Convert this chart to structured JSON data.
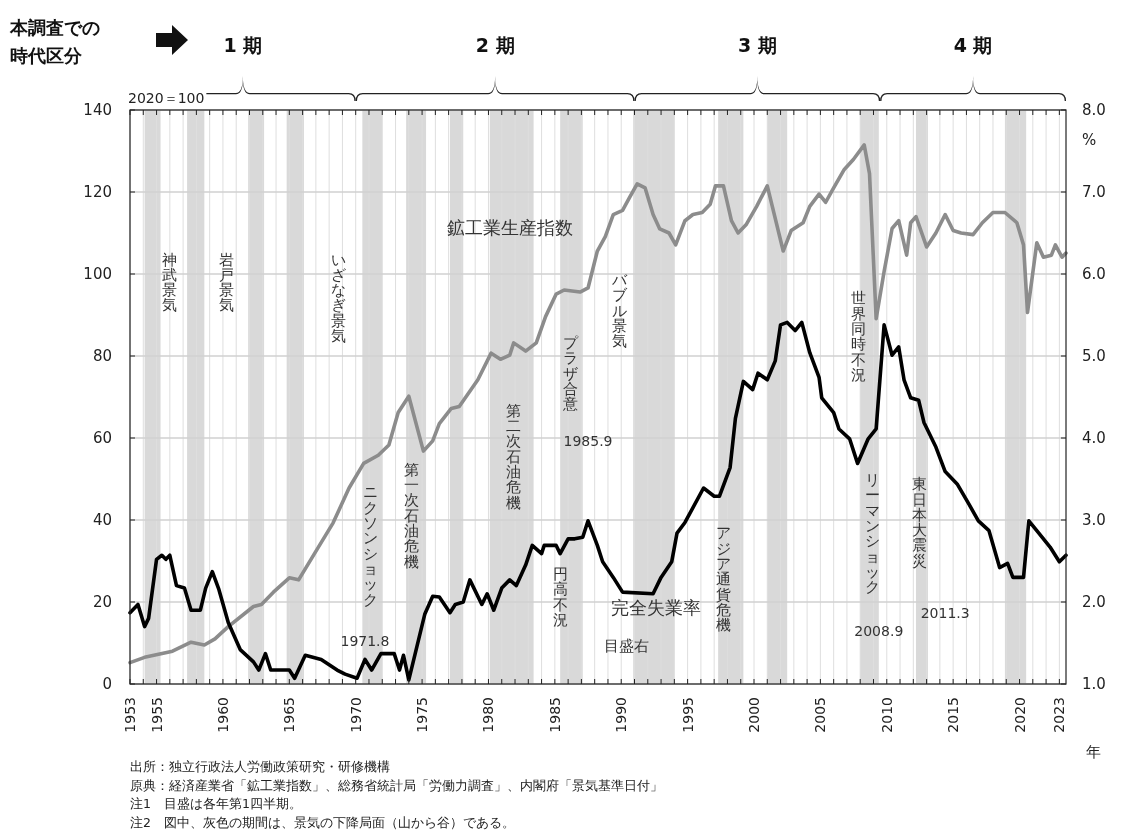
{
  "chart_data": {
    "type": "line",
    "xlabel": "年",
    "ylabel": "2020＝100",
    "y2label": "%",
    "xlim": [
      1953,
      2023.5
    ],
    "xticks": [
      1953,
      {
        "value": 1954,
        "label": null
      },
      1955,
      {
        "value": 1956,
        "label": null
      },
      {
        "value": 1957,
        "label": null
      },
      {
        "value": 1958,
        "label": null
      },
      {
        "value": 1959,
        "label": null
      },
      1960,
      {
        "value": 1961,
        "label": null
      },
      {
        "value": 1962,
        "label": null
      },
      {
        "value": 1963,
        "label": null
      },
      {
        "value": 1964,
        "label": null
      },
      1965,
      {
        "value": 1966,
        "label": null
      },
      {
        "value": 1967,
        "label": null
      },
      {
        "value": 1968,
        "label": null
      },
      {
        "value": 1969,
        "label": null
      },
      1970,
      {
        "value": 1971,
        "label": null
      },
      {
        "value": 1972,
        "label": null
      },
      {
        "value": 1973,
        "label": null
      },
      {
        "value": 1974,
        "label": null
      },
      1975,
      {
        "value": 1976,
        "label": null
      },
      {
        "value": 1977,
        "label": null
      },
      {
        "value": 1978,
        "label": null
      },
      {
        "value": 1979,
        "label": null
      },
      1980,
      {
        "value": 1981,
        "label": null
      },
      {
        "value": 1982,
        "label": null
      },
      {
        "value": 1983,
        "label": null
      },
      {
        "value": 1984,
        "label": null
      },
      1985,
      {
        "value": 1986,
        "label": null
      },
      {
        "value": 1987,
        "label": null
      },
      {
        "value": 1988,
        "label": null
      },
      {
        "value": 1989,
        "label": null
      },
      1990,
      {
        "value": 1991,
        "label": null
      },
      {
        "value": 1992,
        "label": null
      },
      {
        "value": 1993,
        "label": null
      },
      {
        "value": 1994,
        "label": null
      },
      1995,
      {
        "value": 1996,
        "label": null
      },
      {
        "value": 1997,
        "label": null
      },
      {
        "value": 1998,
        "label": null
      },
      {
        "value": 1999,
        "label": null
      },
      2000,
      {
        "value": 2001,
        "label": null
      },
      {
        "value": 2002,
        "label": null
      },
      {
        "value": 2003,
        "label": null
      },
      {
        "value": 2004,
        "label": null
      },
      2005,
      {
        "value": 2006,
        "label": null
      },
      {
        "value": 2007,
        "label": null
      },
      {
        "value": 2008,
        "label": null
      },
      {
        "value": 2009,
        "label": null
      },
      2010,
      {
        "value": 2011,
        "label": null
      },
      {
        "value": 2012,
        "label": null
      },
      {
        "value": 2013,
        "label": null
      },
      {
        "value": 2014,
        "label": null
      },
      2015,
      {
        "value": 2016,
        "label": null
      },
      {
        "value": 2017,
        "label": null
      },
      {
        "value": 2018,
        "label": null
      },
      {
        "value": 2019,
        "label": null
      },
      2020,
      {
        "value": 2021,
        "label": null
      },
      {
        "value": 2022,
        "label": null
      },
      2023
    ],
    "ylim": [
      0,
      140
    ],
    "yticks": [
      0,
      20,
      40,
      60,
      80,
      100,
      120,
      140
    ],
    "y2lim": [
      1,
      8
    ],
    "y2ticks": [
      {
        "value": 1,
        "label": "1.0"
      },
      {
        "value": 2,
        "label": "2.0"
      },
      {
        "value": 3,
        "label": "3.0"
      },
      {
        "value": 4,
        "label": "4.0"
      },
      {
        "value": 5,
        "label": "5.0"
      },
      {
        "value": 6,
        "label": "6.0"
      },
      {
        "value": 7,
        "label": "7.0"
      },
      {
        "value": 8,
        "label": "8.0"
      }
    ],
    "grid": true,
    "series": [
      {
        "name": "鉱工業生産指数",
        "color": "#8c8c8c",
        "x": [
          1953.0,
          1954.1,
          1956.2,
          1957.6,
          1958.6,
          1959.4,
          1960.4,
          1962.3,
          1962.9,
          1963.8,
          1965.0,
          1965.7,
          1967.1,
          1968.3,
          1969.5,
          1970.6,
          1971.7,
          1972.5,
          1973.2,
          1974.0,
          1975.1,
          1975.8,
          1976.3,
          1977.2,
          1977.8,
          1979.2,
          1980.2,
          1980.9,
          1981.6,
          1981.9,
          1982.8,
          1983.6,
          1984.3,
          1985.1,
          1985.7,
          1986.9,
          1987.5,
          1988.2,
          1988.8,
          1989.4,
          1990.1,
          1990.6,
          1991.2,
          1991.8,
          1992.4,
          1992.9,
          1993.6,
          1994.1,
          1994.8,
          1995.4,
          1996.1,
          1996.7,
          1997.1,
          1997.7,
          1998.3,
          1998.8,
          1999.4,
          2000.2,
          2001.0,
          2002.2,
          2002.8,
          2003.7,
          2004.2,
          2004.9,
          2005.4,
          2006.0,
          2006.8,
          2007.5,
          2008.3,
          2008.7,
          2009.2,
          2009.8,
          2010.4,
          2010.9,
          2011.5,
          2011.8,
          2012.2,
          2013.0,
          2013.7,
          2014.4,
          2015.0,
          2015.6,
          2016.5,
          2017.2,
          2018.0,
          2018.9,
          2019.8,
          2020.3,
          2020.6,
          2021.3,
          2021.8,
          2022.4,
          2022.7,
          2023.2,
          2023.5
        ],
        "values": [
          5.2,
          6.5,
          8.0,
          10.2,
          9.5,
          11.0,
          14.0,
          18.9,
          19.4,
          22.4,
          25.9,
          25.4,
          32.9,
          39.3,
          47.8,
          53.8,
          55.8,
          58.3,
          66.2,
          70.2,
          56.8,
          59.3,
          63.5,
          67.2,
          67.7,
          74.2,
          80.7,
          79.2,
          80.2,
          83.2,
          81.2,
          83.2,
          89.6,
          95.1,
          96.1,
          95.6,
          96.6,
          105.6,
          109.1,
          114.5,
          115.5,
          118.5,
          122.0,
          121.0,
          114.5,
          111.0,
          110.0,
          107.1,
          113.0,
          114.5,
          115.0,
          117.0,
          121.5,
          121.5,
          113.0,
          110.0,
          112.0,
          116.5,
          121.5,
          105.6,
          110.6,
          112.5,
          116.5,
          119.5,
          117.5,
          121.0,
          125.5,
          128.0,
          131.5,
          124.5,
          89.1,
          100.6,
          111.1,
          113.0,
          104.6,
          112.5,
          114.0,
          106.6,
          110.0,
          114.5,
          110.6,
          110.0,
          109.6,
          112.5,
          115.0,
          115.0,
          112.5,
          107.1,
          90.6,
          107.6,
          104.1,
          104.6,
          107.1,
          104.1,
          105.1
        ]
      },
      {
        "name": "完全失業率",
        "color": "#000000",
        "axis": "y2",
        "x": [
          1953.0,
          1953.6,
          1954.1,
          1954.4,
          1955.0,
          1955.4,
          1955.7,
          1956.0,
          1956.5,
          1957.1,
          1957.6,
          1958.3,
          1958.7,
          1959.2,
          1959.7,
          1960.4,
          1961.3,
          1962.3,
          1962.7,
          1963.2,
          1963.6,
          1965.0,
          1965.4,
          1966.2,
          1967.4,
          1968.6,
          1969.2,
          1970.1,
          1970.7,
          1971.2,
          1971.9,
          1972.9,
          1973.3,
          1973.6,
          1974.0,
          1974.6,
          1975.2,
          1975.8,
          1976.3,
          1977.1,
          1977.5,
          1978.1,
          1978.6,
          1979.5,
          1979.9,
          1980.4,
          1981.0,
          1981.6,
          1982.1,
          1982.8,
          1983.3,
          1984.0,
          1984.2,
          1985.1,
          1985.4,
          1986.0,
          1986.5,
          1987.1,
          1987.5,
          1988.2,
          1988.6,
          1989.4,
          1990.1,
          1992.4,
          1993.0,
          1993.8,
          1994.2,
          1994.8,
          1996.2,
          1997.0,
          1997.4,
          1998.2,
          1998.6,
          1999.2,
          1999.9,
          2000.3,
          2001.0,
          2001.6,
          2002.0,
          2002.5,
          2003.1,
          2003.6,
          2004.2,
          2004.9,
          2005.1,
          2006.0,
          2006.4,
          2007.2,
          2007.8,
          2008.6,
          2009.2,
          2009.8,
          2010.4,
          2010.9,
          2011.3,
          2011.8,
          2012.4,
          2012.8,
          2013.7,
          2014.4,
          2015.3,
          2016.2,
          2016.9,
          2017.7,
          2018.5,
          2019.1,
          2019.5,
          2020.3,
          2020.7,
          2021.3,
          2022.3,
          2023.0,
          2023.5
        ],
        "values": [
          1.87,
          1.97,
          1.7,
          1.8,
          2.52,
          2.57,
          2.52,
          2.57,
          2.2,
          2.17,
          1.9,
          1.9,
          2.17,
          2.37,
          2.15,
          1.75,
          1.42,
          1.27,
          1.17,
          1.37,
          1.17,
          1.17,
          1.07,
          1.35,
          1.3,
          1.17,
          1.12,
          1.07,
          1.3,
          1.17,
          1.37,
          1.37,
          1.17,
          1.35,
          1.05,
          1.45,
          1.85,
          2.07,
          2.06,
          1.87,
          1.97,
          2.0,
          2.27,
          1.97,
          2.1,
          1.9,
          2.17,
          2.27,
          2.2,
          2.45,
          2.69,
          2.59,
          2.69,
          2.69,
          2.59,
          2.77,
          2.77,
          2.79,
          2.99,
          2.69,
          2.49,
          2.3,
          2.12,
          2.1,
          2.3,
          2.49,
          2.84,
          2.97,
          3.39,
          3.29,
          3.29,
          3.64,
          4.24,
          4.69,
          4.59,
          4.79,
          4.71,
          4.94,
          5.38,
          5.41,
          5.31,
          5.41,
          5.04,
          4.74,
          4.49,
          4.31,
          4.11,
          3.99,
          3.69,
          3.99,
          4.11,
          5.38,
          5.01,
          5.11,
          4.71,
          4.49,
          4.46,
          4.19,
          3.89,
          3.59,
          3.44,
          3.19,
          2.99,
          2.87,
          2.42,
          2.47,
          2.3,
          2.3,
          2.99,
          2.87,
          2.67,
          2.49,
          2.57
        ]
      }
    ],
    "bands": [
      {
        "axis": "x",
        "from": 1954.1,
        "to": 1955.3,
        "color": "#d9d9d9"
      },
      {
        "axis": "x",
        "from": 1957.3,
        "to": 1958.6,
        "color": "#d9d9d9"
      },
      {
        "axis": "x",
        "from": 1961.9,
        "to": 1963.1,
        "color": "#d9d9d9"
      },
      {
        "axis": "x",
        "from": 1964.8,
        "to": 1966.1,
        "color": "#d9d9d9"
      },
      {
        "axis": "x",
        "from": 1970.5,
        "to": 1972.0,
        "color": "#d9d9d9"
      },
      {
        "axis": "x",
        "from": 1973.8,
        "to": 1975.3,
        "color": "#d9d9d9"
      },
      {
        "axis": "x",
        "from": 1977.1,
        "to": 1978.1,
        "color": "#d9d9d9"
      },
      {
        "axis": "x",
        "from": 1980.1,
        "to": 1983.4,
        "color": "#d9d9d9"
      },
      {
        "axis": "x",
        "from": 1985.4,
        "to": 1987.1,
        "color": "#d9d9d9"
      },
      {
        "axis": "x",
        "from": 1990.9,
        "to": 1994.0,
        "color": "#d9d9d9"
      },
      {
        "axis": "x",
        "from": 1997.3,
        "to": 1999.2,
        "color": "#d9d9d9"
      },
      {
        "axis": "x",
        "from": 2001.0,
        "to": 2002.5,
        "color": "#d9d9d9"
      },
      {
        "axis": "x",
        "from": 2008.0,
        "to": 2009.4,
        "color": "#d9d9d9"
      },
      {
        "axis": "x",
        "from": 2012.2,
        "to": 2013.1,
        "color": "#d9d9d9"
      },
      {
        "axis": "x",
        "from": 2018.9,
        "to": 2020.5,
        "color": "#d9d9d9"
      }
    ],
    "annotations": [
      "本調査での時代区分",
      "1 期",
      "2 期",
      "3 期",
      "4 期",
      "目盛右",
      "出所：独立行政法人労働政策研究・研修機構",
      "原典：経済産業省「鉱工業指数」、総務省統計局「労働力調査」、内閣府「景気基準日付」",
      "注1　目盛は各年第1四半期。",
      "注2　図中、灰色の期間は、景気の下降局面（山から谷）である。",
      "神武景気",
      "岩戸景気",
      "いざなぎ景気",
      "ニクソンショック",
      "1971.8",
      "第一次石油危機",
      "第二次石油危機",
      "円高不況",
      "プラザ合意",
      "1985.9",
      "バブル景気",
      "アジア通貨危機",
      "世界同時不況",
      "リーマンショック",
      "2008.9",
      "東日本大震災",
      "2011.3"
    ]
  }
}
